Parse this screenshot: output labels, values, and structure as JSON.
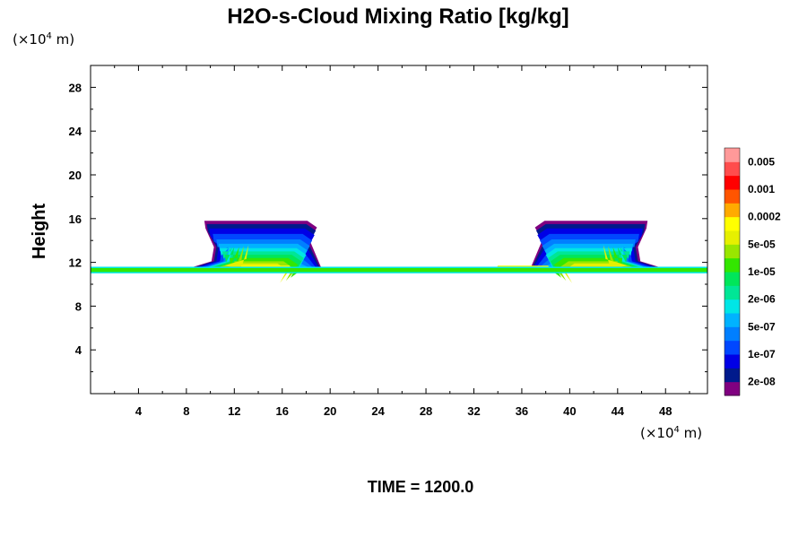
{
  "chart_data": {
    "type": "heatmap",
    "title": "H2O-s-Cloud Mixing Ratio [kg/kg]",
    "xlabel": "",
    "ylabel": "Height",
    "x_unit": "(×10⁴ m)",
    "y_unit": "(×10⁴ m)",
    "unit_prefix": "(×10",
    "unit_exponent": "4",
    "unit_suffix": " m)",
    "xlim": [
      0,
      51.5
    ],
    "ylim": [
      0,
      30
    ],
    "x_ticks": [
      4,
      8,
      12,
      16,
      20,
      24,
      28,
      32,
      36,
      40,
      44,
      48
    ],
    "y_ticks": [
      4,
      8,
      12,
      16,
      20,
      24,
      28
    ],
    "grid": false,
    "footer": "TIME = 1200.0",
    "colorbar": {
      "placement": "right",
      "colors": [
        "#800080",
        "#001a8c",
        "#0000e6",
        "#0047ff",
        "#007fff",
        "#00b3ff",
        "#00e6e6",
        "#00e696",
        "#00e65a",
        "#33e600",
        "#99e600",
        "#e6f000",
        "#ffff00",
        "#ffaa00",
        "#ff5500",
        "#ff0000",
        "#ff4d4d",
        "#ff9999"
      ],
      "labels": [
        "2e-08",
        "1e-07",
        "5e-07",
        "2e-06",
        "1e-05",
        "5e-05",
        "0.0002",
        "0.001",
        "0.005"
      ]
    },
    "cloud_bands": [
      {
        "color": "#800080",
        "top": 15.8,
        "xs": [
          9.5,
          19.3
        ],
        "bottom": 11.2
      },
      {
        "color": "#001a8c",
        "top": 15.5,
        "xs": [
          9.7,
          19.2
        ],
        "bottom": 11.2
      },
      {
        "color": "#0000e6",
        "top": 15.1,
        "xs": [
          9.9,
          19.1
        ],
        "bottom": 11.2
      },
      {
        "color": "#0047ff",
        "top": 14.6,
        "xs": [
          10.2,
          18.9
        ],
        "bottom": 11.2
      },
      {
        "color": "#007fff",
        "top": 14.1,
        "xs": [
          10.5,
          18.7
        ],
        "bottom": 11.2
      },
      {
        "color": "#00b3ff",
        "top": 13.7,
        "xs": [
          10.7,
          18.5
        ],
        "bottom": 11.2
      },
      {
        "color": "#00e6e6",
        "top": 13.3,
        "xs": [
          10.8,
          18.4
        ],
        "bottom": 11.2
      },
      {
        "color": "#00e696",
        "top": 13.0,
        "xs": [
          11.0,
          18.2
        ],
        "bottom": 11.2
      },
      {
        "color": "#00e65a",
        "top": 12.7,
        "xs": [
          11.2,
          18.0
        ],
        "bottom": 11.2
      },
      {
        "color": "#33e600",
        "top": 12.4,
        "xs": [
          11.6,
          17.7
        ],
        "bottom": 11.2
      },
      {
        "color": "#99e600",
        "top": 12.1,
        "xs": [
          12.0,
          17.3
        ],
        "bottom": 11.3
      },
      {
        "color": "#e6f000",
        "top": 11.9,
        "xs": [
          12.4,
          16.8
        ],
        "bottom": 11.4
      }
    ],
    "anvil_layer": {
      "y": [
        11.0,
        11.6
      ],
      "x": [
        0,
        51.5
      ],
      "color": "#33e600",
      "edge_color": "#00e6e6"
    }
  }
}
